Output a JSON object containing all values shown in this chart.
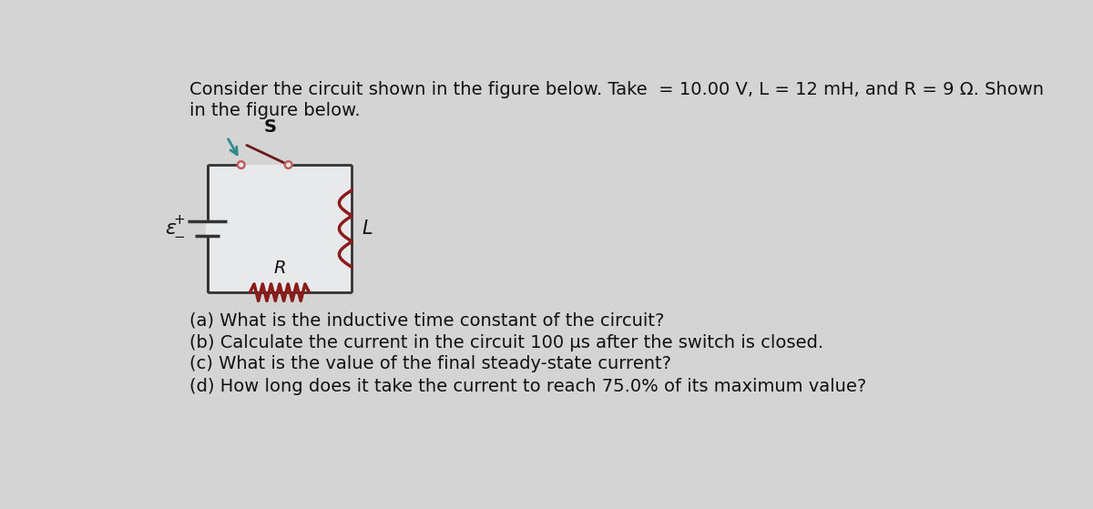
{
  "title_line1": "Consider the circuit shown in the figure below. Take  = 10.00 V, L = 12 mH, and R = 9 Ω. Shown",
  "title_line2": "in the figure below.",
  "questions": [
    "(a) What is the inductive time constant of the circuit?",
    "(b) Calculate the current in the circuit 100 μs after the switch is closed.",
    "(c) What is the value of the final steady-state current?",
    "(d) How long does it take the current to reach 75.0% of its maximum value?"
  ],
  "bg_color": "#d4d4d4",
  "circuit_bg": "#e8e9ea",
  "text_color": "#111111",
  "circuit_line_color": "#333333",
  "switch_color": "#6b1a1a",
  "arrow_color": "#2e8b8b",
  "inductor_color": "#8b1a1a",
  "resistor_color": "#8b1a1a",
  "font_size_title": 14.0,
  "font_size_question": 14.0,
  "sw_contact_color": "#c06060"
}
